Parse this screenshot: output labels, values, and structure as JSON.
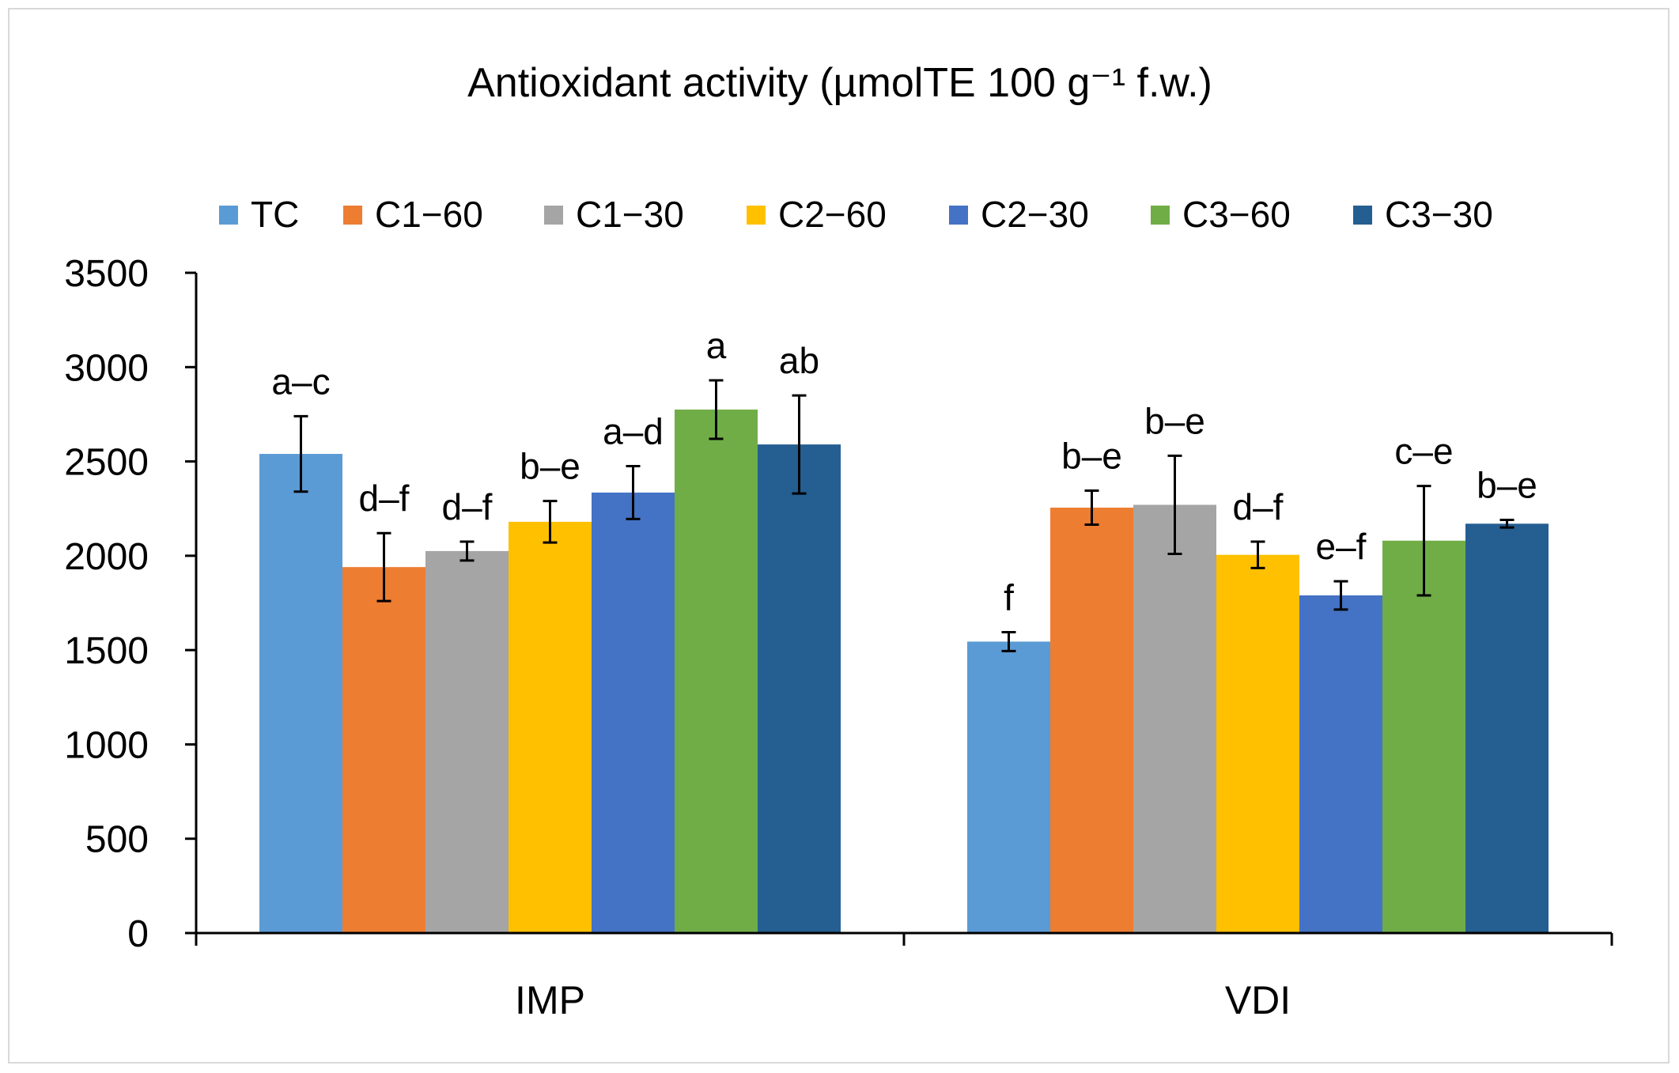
{
  "chart_data": {
    "type": "bar",
    "title": "Antioxidant activity (µmolTE 100 g⁻¹ f.w.)",
    "xlabel": "",
    "ylabel": "",
    "ylim": [
      0,
      3500
    ],
    "yticks": [
      0,
      500,
      1000,
      1500,
      2000,
      2500,
      3000,
      3500
    ],
    "ytick_labels": [
      "0",
      "500",
      "1000",
      "1500",
      "2000",
      "2500",
      "3000",
      "3500"
    ],
    "grid": false,
    "legend_position": "top",
    "categories": [
      "IMP",
      "VDI"
    ],
    "series": [
      {
        "name": "TC",
        "color": "#5b9bd5",
        "values": [
          2540,
          1545
        ],
        "errors": [
          200,
          50
        ],
        "labels": [
          "a–c",
          "f"
        ]
      },
      {
        "name": "C1−60",
        "color": "#ed7d31",
        "values": [
          1940,
          2255
        ],
        "errors": [
          180,
          90
        ],
        "labels": [
          "d–f",
          "b–e"
        ]
      },
      {
        "name": "C1−30",
        "color": "#a5a5a5",
        "values": [
          2025,
          2270
        ],
        "errors": [
          50,
          260
        ],
        "labels": [
          "d–f",
          "b–e"
        ]
      },
      {
        "name": "C2−60",
        "color": "#ffc000",
        "values": [
          2180,
          2005
        ],
        "errors": [
          110,
          70
        ],
        "labels": [
          "b–e",
          "d–f"
        ]
      },
      {
        "name": "C2−30",
        "color": "#4472c4",
        "values": [
          2335,
          1790
        ],
        "errors": [
          140,
          75
        ],
        "labels": [
          "a–d",
          "e–f"
        ]
      },
      {
        "name": "C3−60",
        "color": "#70ad47",
        "values": [
          2775,
          2080
        ],
        "errors": [
          155,
          290
        ],
        "labels": [
          "a",
          "c–e"
        ]
      },
      {
        "name": "C3−30",
        "color": "#255e91",
        "values": [
          2590,
          2170
        ],
        "errors": [
          260,
          20
        ],
        "labels": [
          "ab",
          "b–e"
        ]
      }
    ]
  }
}
